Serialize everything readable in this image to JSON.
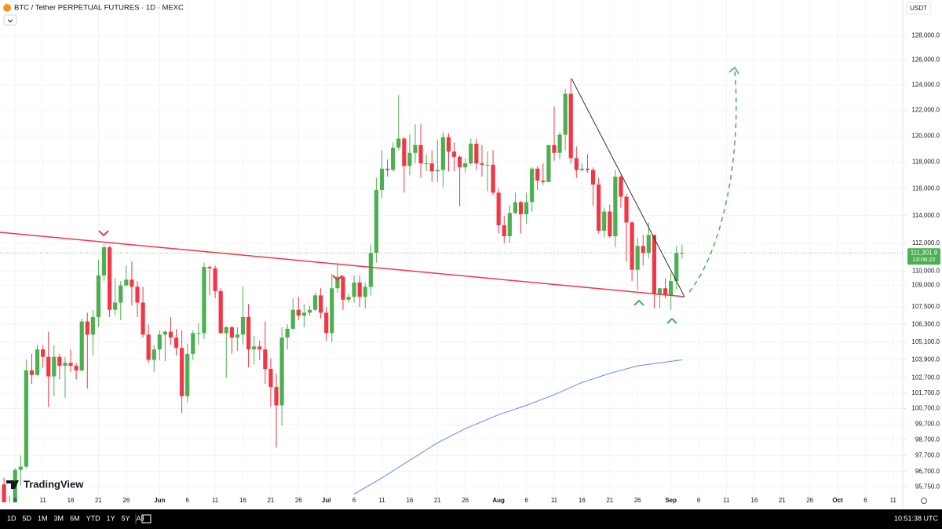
{
  "chart_data": {
    "type": "candlestick",
    "title": "BTC / Tether PERPETUAL FUTURES · 1D · MEXC",
    "currency": "USDT",
    "brand": "TradingView",
    "log_scale": true,
    "up_color": "#4caf50",
    "down_color": "#f23645",
    "ylim": [
      94800,
      129000
    ],
    "yticks": [
      {
        "value": 128000,
        "label": "128,000.0"
      },
      {
        "value": 126000,
        "label": "126,000.0"
      },
      {
        "value": 124000,
        "label": "124,000.0"
      },
      {
        "value": 122000,
        "label": "122,000.0"
      },
      {
        "value": 120000,
        "label": "120,000.0"
      },
      {
        "value": 118000,
        "label": "118,000.0"
      },
      {
        "value": 116000,
        "label": "116,000.0"
      },
      {
        "value": 114000,
        "label": "114,000.0"
      },
      {
        "value": 112000,
        "label": "112,000.0"
      },
      {
        "value": 110000,
        "label": "110,000.0"
      },
      {
        "value": 109000,
        "label": "109,000.0"
      },
      {
        "value": 107500,
        "label": "107,500.0"
      },
      {
        "value": 106300,
        "label": "106,300.0"
      },
      {
        "value": 105100,
        "label": "105,100.0"
      },
      {
        "value": 103900,
        "label": "103,900.0"
      },
      {
        "value": 102700,
        "label": "102,700.0"
      },
      {
        "value": 101700,
        "label": "101,700.0"
      },
      {
        "value": 100700,
        "label": "100,700.0"
      },
      {
        "value": 99700,
        "label": "99,700.0"
      },
      {
        "value": 98700,
        "label": "98,700.0"
      },
      {
        "value": 97700,
        "label": "97,700.0"
      },
      {
        "value": 96700,
        "label": "96,700.0"
      },
      {
        "value": 95750,
        "label": "95,750.0"
      }
    ],
    "xlim": [
      "05-03",
      "10-13"
    ],
    "xticks": [
      {
        "value": "05-06",
        "label": "6"
      },
      {
        "value": "05-11",
        "label": "11"
      },
      {
        "value": "05-16",
        "label": "16"
      },
      {
        "value": "05-21",
        "label": "21"
      },
      {
        "value": "05-26",
        "label": "26"
      },
      {
        "value": "06-01",
        "label": "Jun"
      },
      {
        "value": "06-06",
        "label": "6"
      },
      {
        "value": "06-11",
        "label": "11"
      },
      {
        "value": "06-16",
        "label": "16"
      },
      {
        "value": "06-21",
        "label": "21"
      },
      {
        "value": "06-26",
        "label": "26"
      },
      {
        "value": "07-01",
        "label": "Jul"
      },
      {
        "value": "07-06",
        "label": "6"
      },
      {
        "value": "07-11",
        "label": "11"
      },
      {
        "value": "07-16",
        "label": "16"
      },
      {
        "value": "07-21",
        "label": "21"
      },
      {
        "value": "07-26",
        "label": "26"
      },
      {
        "value": "08-01",
        "label": "Aug"
      },
      {
        "value": "08-06",
        "label": "6"
      },
      {
        "value": "08-11",
        "label": "11"
      },
      {
        "value": "08-16",
        "label": "16"
      },
      {
        "value": "08-21",
        "label": "21"
      },
      {
        "value": "08-26",
        "label": "26"
      },
      {
        "value": "09-01",
        "label": "Sep"
      },
      {
        "value": "09-06",
        "label": "6"
      },
      {
        "value": "09-11",
        "label": "11"
      },
      {
        "value": "09-16",
        "label": "16"
      },
      {
        "value": "09-21",
        "label": "21"
      },
      {
        "value": "09-26",
        "label": "26"
      },
      {
        "value": "10-01",
        "label": "Oct"
      },
      {
        "value": "10-06",
        "label": "6"
      },
      {
        "value": "10-11",
        "label": "11"
      }
    ],
    "x": [
      "05-04",
      "05-05",
      "05-06",
      "05-07",
      "05-08",
      "05-09",
      "05-10",
      "05-11",
      "05-12",
      "05-13",
      "05-14",
      "05-15",
      "05-16",
      "05-17",
      "05-18",
      "05-19",
      "05-20",
      "05-21",
      "05-22",
      "05-23",
      "05-24",
      "05-25",
      "05-26",
      "05-27",
      "05-28",
      "05-29",
      "05-30",
      "05-31",
      "06-01",
      "06-02",
      "06-03",
      "06-04",
      "06-05",
      "06-06",
      "06-07",
      "06-08",
      "06-09",
      "06-10",
      "06-11",
      "06-12",
      "06-13",
      "06-14",
      "06-15",
      "06-16",
      "06-17",
      "06-18",
      "06-19",
      "06-20",
      "06-21",
      "06-22",
      "06-23",
      "06-24",
      "06-25",
      "06-26",
      "06-27",
      "06-28",
      "06-29",
      "06-30",
      "07-01",
      "07-02",
      "07-03",
      "07-04",
      "07-05",
      "07-06",
      "07-07",
      "07-08",
      "07-09",
      "07-10",
      "07-11",
      "07-12",
      "07-13",
      "07-14",
      "07-15",
      "07-16",
      "07-17",
      "07-18",
      "07-19",
      "07-20",
      "07-21",
      "07-22",
      "07-23",
      "07-24",
      "07-25",
      "07-26",
      "07-27",
      "07-28",
      "07-29",
      "07-30",
      "07-31",
      "08-01",
      "08-02",
      "08-03",
      "08-04",
      "08-05",
      "08-06",
      "08-07",
      "08-08",
      "08-09",
      "08-10",
      "08-11",
      "08-12",
      "08-13",
      "08-14",
      "08-15",
      "08-16",
      "08-17",
      "08-18",
      "08-19",
      "08-20",
      "08-21",
      "08-22",
      "08-23",
      "08-24",
      "08-25",
      "08-26",
      "08-27",
      "08-28",
      "08-29",
      "08-30",
      "08-31",
      "09-01",
      "09-02",
      "09-03"
    ],
    "open": [
      95900,
      94300,
      94700,
      96800,
      97000,
      103200,
      102900,
      104600,
      104100,
      102800,
      104100,
      103500,
      103700,
      103500,
      103200,
      106500,
      105600,
      106800,
      109700,
      111700,
      107300,
      107800,
      109000,
      109400,
      108900,
      107800,
      105600,
      103900,
      104600,
      105600,
      105800,
      105400,
      104700,
      101500,
      104300,
      105700,
      105700,
      110300,
      110200,
      108600,
      105700,
      106100,
      105400,
      105600,
      106800,
      104600,
      104800,
      104600,
      103300,
      102100,
      100900,
      105400,
      106000,
      107300,
      106900,
      107100,
      107300,
      108300,
      107100,
      105700,
      108800,
      109600,
      108000,
      108200,
      109200,
      108200,
      108900,
      111300,
      115900,
      117500,
      117400,
      119100,
      119800,
      117700,
      118700,
      119300,
      117900,
      117900,
      117300,
      117400,
      119900,
      118800,
      118400,
      117600,
      117900,
      119400,
      117900,
      117800,
      117800,
      115700,
      113300,
      112500,
      114200,
      115000,
      114100,
      115000,
      117500,
      116600,
      116500,
      119300,
      118700,
      120100,
      123300,
      118300,
      117400,
      117500,
      117400,
      116300,
      112900,
      114300,
      112500,
      116900,
      115400,
      113500,
      110100,
      111800,
      111300,
      112600,
      108400,
      108800,
      108300,
      109300,
      111300
    ],
    "high": [
      96300,
      95200,
      96900,
      97700,
      103900,
      104300,
      104900,
      104900,
      105800,
      104900,
      104300,
      104100,
      104600,
      103700,
      106700,
      107100,
      107300,
      110800,
      111900,
      111800,
      109500,
      109300,
      110400,
      110700,
      109300,
      108900,
      106300,
      104900,
      105900,
      105900,
      106800,
      106000,
      105900,
      105000,
      105900,
      106400,
      110600,
      110400,
      110400,
      108800,
      106200,
      106200,
      106100,
      108900,
      107700,
      105500,
      105200,
      106500,
      104000,
      103000,
      106100,
      106300,
      108100,
      108200,
      107700,
      107600,
      108500,
      108800,
      107500,
      109800,
      110500,
      109700,
      108400,
      109700,
      109700,
      109200,
      111900,
      116800,
      118900,
      118200,
      119500,
      123200,
      119900,
      120100,
      120900,
      120900,
      118600,
      118900,
      119700,
      120300,
      120200,
      119500,
      118500,
      118300,
      119800,
      119800,
      119300,
      118800,
      118900,
      116000,
      114000,
      114800,
      115700,
      115100,
      115700,
      117600,
      117700,
      117900,
      119300,
      122300,
      120300,
      123700,
      124500,
      119200,
      117900,
      118600,
      117600,
      116800,
      114600,
      114800,
      117400,
      117000,
      115600,
      113600,
      112400,
      112600,
      113500,
      112600,
      108800,
      109500,
      109900,
      111800,
      111900
    ],
    "low": [
      94200,
      93500,
      93400,
      95800,
      96900,
      102300,
      102800,
      103400,
      100800,
      101500,
      102600,
      101400,
      103100,
      102600,
      103100,
      102000,
      104200,
      106100,
      109300,
      106800,
      106900,
      106600,
      108900,
      107600,
      106800,
      105400,
      103700,
      103100,
      103900,
      103800,
      104900,
      104200,
      100400,
      101100,
      103900,
      104900,
      105300,
      108300,
      108100,
      105700,
      102700,
      104300,
      104500,
      104900,
      103400,
      103600,
      103900,
      102300,
      100800,
      98200,
      99600,
      104600,
      105900,
      106600,
      106100,
      106900,
      107200,
      106700,
      105200,
      105100,
      108500,
      107300,
      107800,
      107800,
      107500,
      107400,
      108300,
      110600,
      115300,
      116900,
      117300,
      118900,
      115700,
      117000,
      117900,
      116800,
      117300,
      116500,
      116500,
      116100,
      117300,
      117300,
      114700,
      117200,
      117800,
      117400,
      116900,
      115800,
      115500,
      112700,
      112000,
      112000,
      114100,
      112700,
      113400,
      114300,
      115900,
      116300,
      116500,
      118100,
      118200,
      118900,
      117900,
      116800,
      117300,
      117200,
      114700,
      112700,
      112400,
      112400,
      111700,
      114600,
      110700,
      109300,
      108700,
      110400,
      110900,
      107400,
      107400,
      108100,
      107300,
      108700,
      110900
    ],
    "close": [
      94300,
      94700,
      96800,
      97000,
      103200,
      102900,
      104600,
      104100,
      102800,
      104100,
      103500,
      103700,
      103500,
      103200,
      106500,
      105600,
      106800,
      109700,
      111700,
      107300,
      107800,
      109000,
      109400,
      108900,
      107800,
      105600,
      103900,
      104600,
      105600,
      105800,
      105400,
      104700,
      101500,
      104300,
      105700,
      105700,
      110300,
      110200,
      108600,
      105700,
      106100,
      105400,
      105600,
      106800,
      104600,
      104800,
      104600,
      103300,
      102100,
      100900,
      105400,
      106000,
      107300,
      106900,
      107100,
      107300,
      108300,
      107100,
      105700,
      108800,
      109600,
      108000,
      108200,
      109200,
      108200,
      108900,
      111300,
      115900,
      117500,
      117400,
      119100,
      119800,
      117700,
      118700,
      119300,
      117900,
      117900,
      117300,
      117400,
      119900,
      118800,
      118400,
      117600,
      117900,
      119400,
      117900,
      117800,
      117800,
      115700,
      113300,
      112500,
      114200,
      115000,
      114100,
      115000,
      117500,
      116600,
      116500,
      119300,
      118700,
      120100,
      123300,
      118300,
      117400,
      117500,
      117400,
      116300,
      112900,
      114300,
      112500,
      116900,
      115400,
      113500,
      110100,
      111800,
      111300,
      112600,
      108400,
      108800,
      108300,
      109300,
      111300,
      111300
    ],
    "moving_average": {
      "color": "#5b8def",
      "x": [
        "07-06",
        "07-11",
        "07-16",
        "07-21",
        "07-26",
        "08-01",
        "08-06",
        "08-11",
        "08-16",
        "08-21",
        "08-26",
        "09-01",
        "09-03"
      ],
      "values": [
        95300,
        96300,
        97400,
        98500,
        99400,
        100300,
        100900,
        101600,
        102400,
        103000,
        103500,
        103800,
        103900
      ]
    },
    "last_price": {
      "value": 111301.9,
      "label": "111,301.9"
    },
    "countdown": "13:08:22"
  },
  "toolbar": {
    "ranges": [
      "1D",
      "5D",
      "1M",
      "3M",
      "6M",
      "YTD",
      "1Y",
      "5Y",
      "All"
    ],
    "clock": "10:51:38 UTC"
  }
}
